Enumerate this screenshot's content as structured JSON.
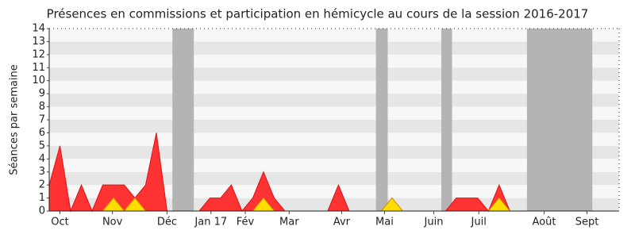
{
  "chart_data": {
    "type": "area",
    "title": "Présences en commissions et participation en hémicycle au cours de la session 2016-2017",
    "y_label": "Séances par semaine",
    "x": [
      0,
      1,
      2,
      3,
      4,
      5,
      6,
      7,
      8,
      9,
      10,
      11,
      12,
      13,
      14,
      15,
      16,
      17,
      18,
      19,
      20,
      21,
      22,
      23,
      24,
      25,
      26,
      27,
      28,
      29,
      30,
      31,
      32,
      33,
      34,
      35,
      36,
      37,
      38,
      39,
      40,
      41,
      42,
      43,
      44,
      45,
      46,
      47,
      48,
      49,
      50,
      51,
      52,
      53
    ],
    "series": [
      {
        "color": "#ff3333",
        "values": [
          2,
          5,
          0,
          2,
          0,
          2,
          2,
          2,
          1,
          2,
          6,
          0,
          0,
          0,
          0,
          1,
          1,
          2,
          0,
          1,
          3,
          1,
          0,
          0,
          0,
          0,
          0,
          2,
          0,
          0,
          0,
          0,
          1,
          0,
          0,
          0,
          0,
          0,
          1,
          1,
          1,
          0,
          2,
          0,
          0,
          0,
          0,
          0,
          0,
          0,
          0,
          0,
          0,
          0
        ]
      },
      {
        "color": "#ffdd00",
        "values": [
          0,
          0,
          0,
          0,
          0,
          0,
          1,
          0,
          1,
          0,
          0,
          0,
          0,
          0,
          0,
          0,
          0,
          0,
          0,
          0,
          1,
          0,
          0,
          0,
          0,
          0,
          0,
          0,
          0,
          0,
          0,
          0,
          1,
          0,
          0,
          0,
          0,
          0,
          0,
          0,
          0,
          0,
          1,
          0,
          0,
          0,
          0,
          0,
          0,
          0,
          0,
          0,
          0,
          0
        ]
      }
    ],
    "shaded_ranges": [
      [
        11.5,
        13.5
      ],
      [
        30.5,
        31.6
      ],
      [
        36.6,
        37.6
      ],
      [
        44.6,
        50.7
      ]
    ],
    "xlim": [
      0,
      53.2
    ],
    "xticks": [
      {
        "value": 1,
        "label": "Oct"
      },
      {
        "value": 5.9,
        "label": "Nov"
      },
      {
        "value": 11,
        "label": "Déc"
      },
      {
        "value": 15.1,
        "label": "Jan 17"
      },
      {
        "value": 18.3,
        "label": "Fév"
      },
      {
        "value": 22.4,
        "label": "Mar"
      },
      {
        "value": 27.3,
        "label": "Avr"
      },
      {
        "value": 31.3,
        "label": "Mai"
      },
      {
        "value": 35.9,
        "label": "Juin"
      },
      {
        "value": 40.1,
        "label": "Juil"
      },
      {
        "value": 46.2,
        "label": "Août"
      },
      {
        "value": 50.2,
        "label": "Sept"
      }
    ],
    "ylim": [
      0,
      14
    ],
    "yticks": [
      0,
      1,
      2,
      3,
      4,
      5,
      6,
      7,
      8,
      9,
      10,
      11,
      12,
      13,
      14
    ]
  }
}
